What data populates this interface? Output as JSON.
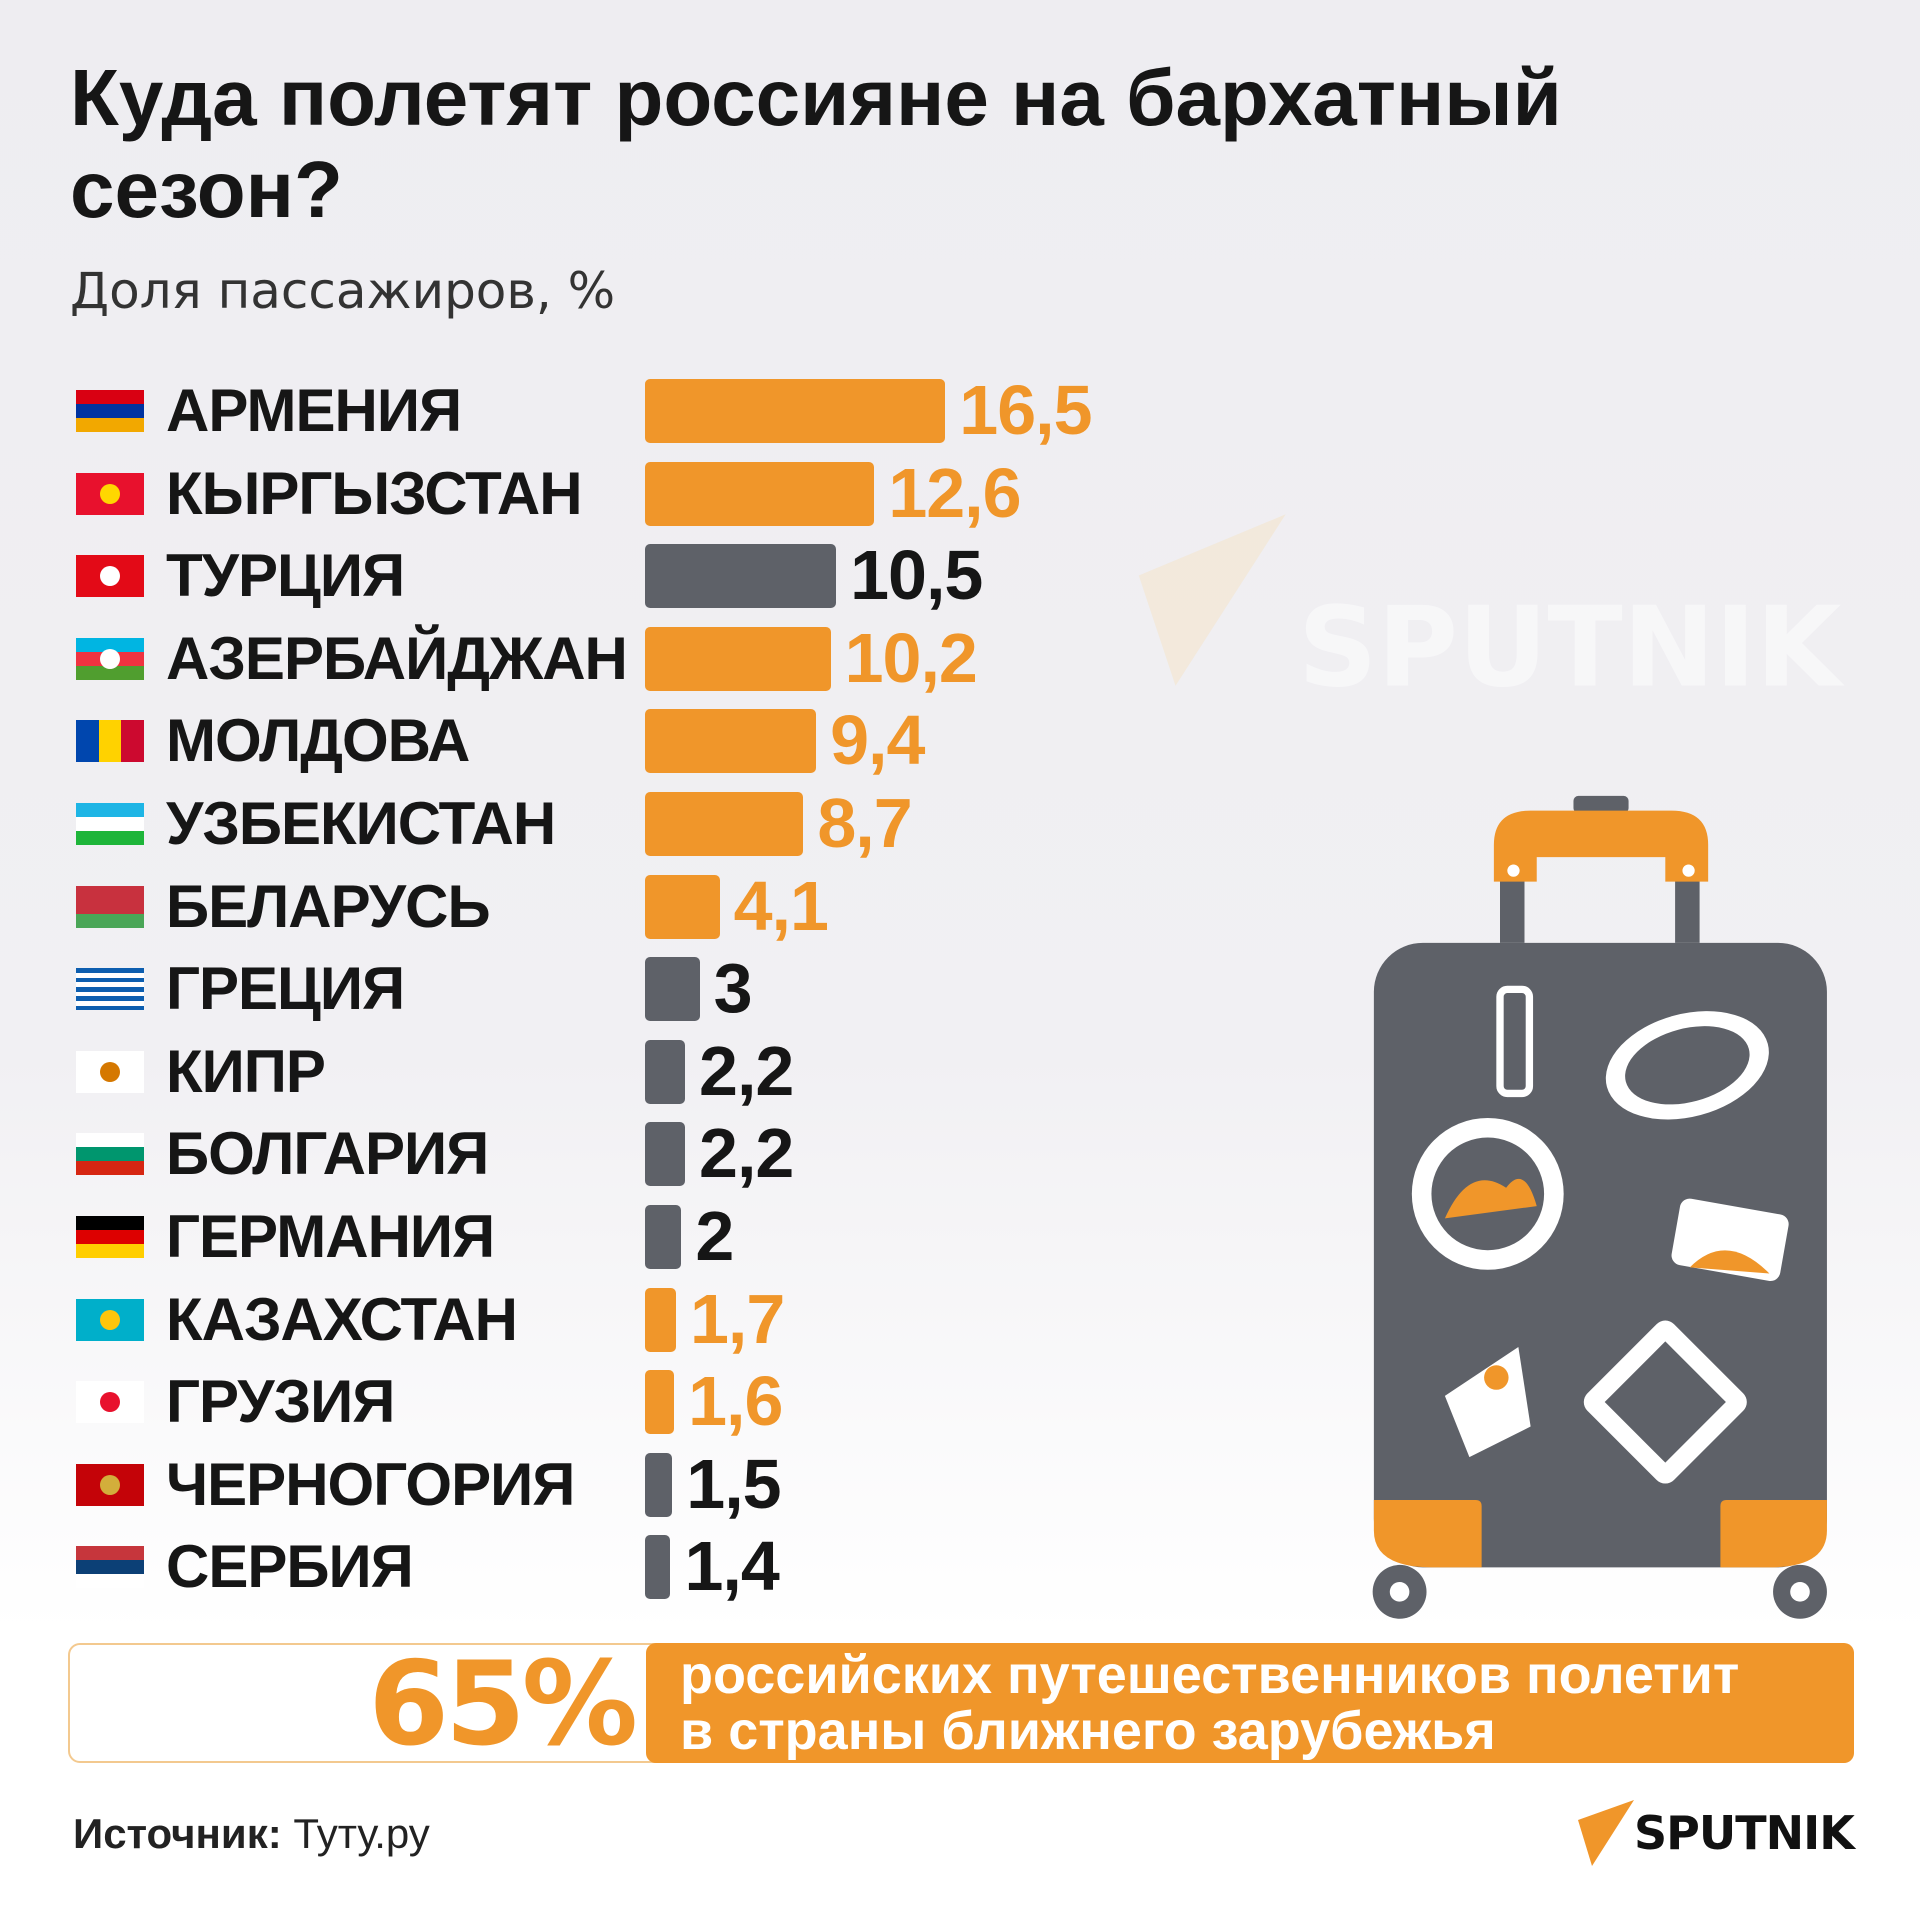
{
  "title": "Куда полетят россияне на бархатный сезон?",
  "subtitle": "Доля пассажиров, %",
  "colors": {
    "highlight": "#F0962A",
    "other": "#5E6168"
  },
  "chart_data": {
    "type": "bar",
    "orientation": "horizontal",
    "title": "Куда полетят россияне на бархатный сезон?",
    "ylabel": "Доля пассажиров, %",
    "categories": [
      "АРМЕНИЯ",
      "КЫРГЫЗСТАН",
      "ТУРЦИЯ",
      "АЗЕРБАЙДЖАН",
      "МОЛДОВА",
      "УЗБЕКИСТАН",
      "БЕЛАРУСЬ",
      "ГРЕЦИЯ",
      "КИПР",
      "БОЛГАРИЯ",
      "ГЕРМАНИЯ",
      "КАЗАХСТАН",
      "ГРУЗИЯ",
      "ЧЕРНОГОРИЯ",
      "СЕРБИЯ"
    ],
    "values": [
      16.5,
      12.6,
      10.5,
      10.2,
      9.4,
      8.7,
      4.1,
      3,
      2.2,
      2.2,
      2,
      1.7,
      1.6,
      1.5,
      1.4
    ],
    "value_labels": [
      "16,5",
      "12,6",
      "10,5",
      "10,2",
      "9,4",
      "8,7",
      "4,1",
      "3",
      "2,2",
      "2,2",
      "2",
      "1,7",
      "1,6",
      "1,5",
      "1,4"
    ],
    "highlight": [
      true,
      true,
      false,
      true,
      true,
      true,
      true,
      false,
      false,
      false,
      false,
      true,
      true,
      false,
      false
    ],
    "xlim": [
      0,
      16.5
    ],
    "grid": false
  },
  "flags": [
    {
      "stripes": [
        "#D90012",
        "#0033A0",
        "#F2A800"
      ]
    },
    {
      "stripes": [
        "#E8112D"
      ],
      "emblem": "#FFD700"
    },
    {
      "stripes": [
        "#E30A17"
      ],
      "emblem": "#ffffff"
    },
    {
      "stripes": [
        "#00B5E2",
        "#EF3340",
        "#509E2F"
      ],
      "emblem": "#ffffff"
    },
    {
      "stripes": [
        "#0046AE",
        "#FFD200",
        "#CC092F"
      ],
      "vertical": true
    },
    {
      "stripes": [
        "#1EB5E5",
        "#ffffff",
        "#1EB53A"
      ]
    },
    {
      "stripes": [
        "#C8313E",
        "#C8313E",
        "#4AA657"
      ]
    },
    {
      "stripes": [
        "#0D5EAF",
        "#ffffff",
        "#0D5EAF",
        "#ffffff",
        "#0D5EAF",
        "#ffffff",
        "#0D5EAF",
        "#ffffff",
        "#0D5EAF"
      ]
    },
    {
      "stripes": [
        "#ffffff"
      ],
      "emblem": "#D57800"
    },
    {
      "stripes": [
        "#ffffff",
        "#00966E",
        "#D62612"
      ]
    },
    {
      "stripes": [
        "#000000",
        "#DD0000",
        "#FFCE00"
      ]
    },
    {
      "stripes": [
        "#00AFCA"
      ],
      "emblem": "#FEC50C"
    },
    {
      "stripes": [
        "#ffffff"
      ],
      "emblem": "#E8112D"
    },
    {
      "stripes": [
        "#C40308"
      ],
      "emblem": "#D3AE3B"
    },
    {
      "stripes": [
        "#C6363C",
        "#0C4076",
        "#ffffff"
      ]
    }
  ],
  "summary": {
    "percent": "65%",
    "line1": "российских путешественников полетит",
    "line2": "в страны ближнего зарубежья"
  },
  "source": {
    "label": "Источник:",
    "value": "Туту.ру"
  },
  "brand": "SPUTNIK",
  "watermark": "SPUTNIK"
}
